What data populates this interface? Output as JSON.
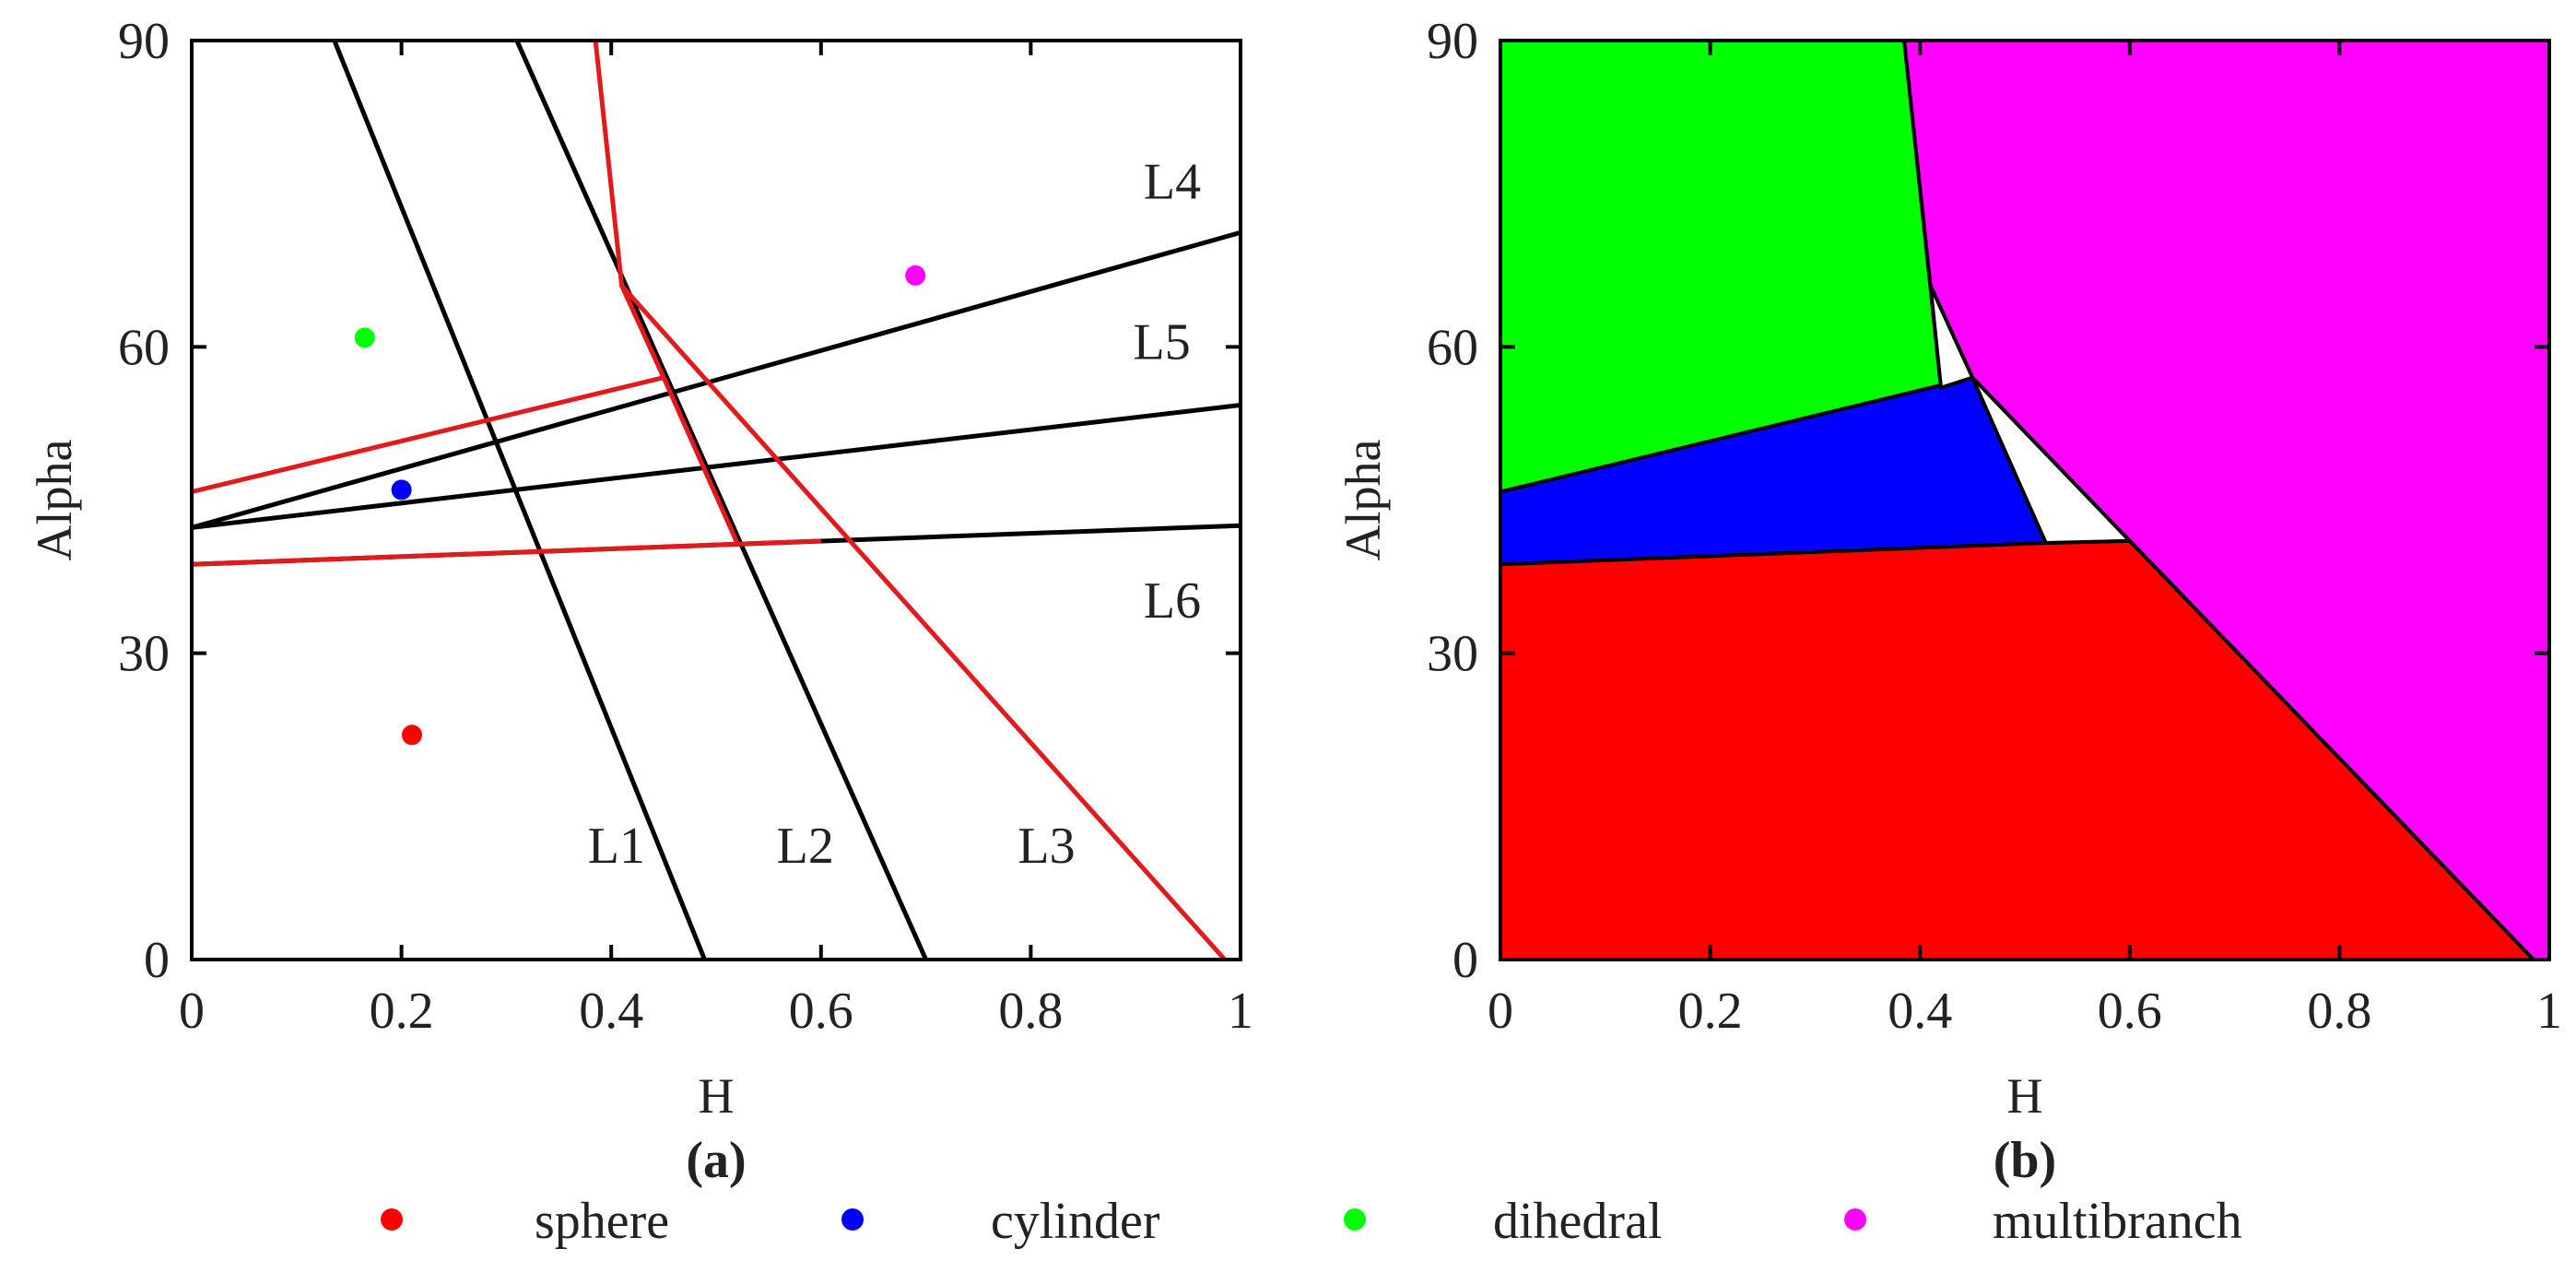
{
  "chart_data": [
    {
      "type": "line",
      "panel": "a",
      "caption": "(a)",
      "xlabel": "H",
      "ylabel": "Alpha",
      "xlim": [
        0,
        1
      ],
      "ylim": [
        0,
        90
      ],
      "xticks": [
        "0",
        "0.2",
        "0.4",
        "0.6",
        "0.8",
        "1"
      ],
      "yticks": [
        "0",
        "30",
        "60",
        "90"
      ],
      "black_lines": [
        {
          "name": "L1",
          "points": [
            [
              0.136,
              90
            ],
            [
              0.489,
              0
            ]
          ]
        },
        {
          "name": "L2",
          "points": [
            [
              0.31,
              90
            ],
            [
              0.7,
              0
            ]
          ]
        },
        {
          "name": "L4",
          "points": [
            [
              0.0,
              42.3
            ],
            [
              1.0,
              71.2
            ]
          ]
        },
        {
          "name": "L5",
          "points": [
            [
              0.0,
              42.3
            ],
            [
              1.0,
              54.3
            ]
          ]
        },
        {
          "name": "L6",
          "points": [
            [
              0.0,
              38.7
            ],
            [
              1.0,
              42.5
            ]
          ]
        }
      ],
      "red_lines": [
        {
          "name": "boundary-steep",
          "points": [
            [
              0.385,
              90
            ],
            [
              0.41,
              66.0
            ],
            [
              0.45,
              57.0
            ],
            [
              0.52,
              40.8
            ]
          ]
        },
        {
          "name": "L3",
          "points": [
            [
              0.41,
              66.0
            ],
            [
              0.985,
              0
            ]
          ]
        },
        {
          "name": "boundary-upper",
          "points": [
            [
              0.0,
              45.8
            ],
            [
              0.45,
              57.0
            ]
          ]
        },
        {
          "name": "boundary-lower",
          "points": [
            [
              0.0,
              38.7
            ],
            [
              0.6,
              41.0
            ]
          ]
        }
      ],
      "line_labels": [
        {
          "text": "L1",
          "x": 0.405,
          "y": 9.5
        },
        {
          "text": "L2",
          "x": 0.585,
          "y": 9.5
        },
        {
          "text": "L3",
          "x": 0.815,
          "y": 9.5
        },
        {
          "text": "L4",
          "x": 0.935,
          "y": 74.5
        },
        {
          "text": "L5",
          "x": 0.925,
          "y": 58.8
        },
        {
          "text": "L6",
          "x": 0.935,
          "y": 33.5
        }
      ],
      "points": [
        {
          "class": "sphere",
          "x": 0.21,
          "y": 22.0,
          "color": "#ff0000"
        },
        {
          "class": "cylinder",
          "x": 0.2,
          "y": 46.0,
          "color": "#0000ff"
        },
        {
          "class": "dihedral",
          "x": 0.165,
          "y": 60.9,
          "color": "#00ff00"
        },
        {
          "class": "multibranch",
          "x": 0.69,
          "y": 67.0,
          "color": "#ff00ff"
        }
      ]
    },
    {
      "type": "area",
      "panel": "b",
      "caption": "(b)",
      "xlabel": "H",
      "ylabel": "Alpha",
      "xlim": [
        0,
        1
      ],
      "ylim": [
        0,
        90
      ],
      "xticks": [
        "0",
        "0.2",
        "0.4",
        "0.6",
        "0.8",
        "1"
      ],
      "yticks": [
        "0",
        "30",
        "60",
        "90"
      ],
      "regions": [
        {
          "class": "dihedral",
          "color": "#00ff00",
          "polygon": [
            [
              0,
              90
            ],
            [
              0.385,
              90
            ],
            [
              0.42,
              56.0
            ],
            [
              0.0,
              45.8
            ]
          ]
        },
        {
          "class": "multibranch",
          "color": "#ff00ff",
          "polygon": [
            [
              0.385,
              90
            ],
            [
              1,
              90
            ],
            [
              1,
              0
            ],
            [
              0.985,
              0
            ],
            [
              0.6,
              41.0
            ],
            [
              0.45,
              57.0
            ],
            [
              0.41,
              66.0
            ]
          ]
        },
        {
          "class": "cylinder",
          "color": "#0000ff",
          "polygon": [
            [
              0.0,
              45.8
            ],
            [
              0.45,
              57.0
            ],
            [
              0.52,
              40.8
            ],
            [
              0.0,
              38.7
            ]
          ]
        },
        {
          "class": "sphere",
          "color": "#ff0000",
          "polygon": [
            [
              0.0,
              38.7
            ],
            [
              0.52,
              40.8
            ],
            [
              0.6,
              41.0
            ],
            [
              0.985,
              0
            ],
            [
              0,
              0
            ]
          ]
        },
        {
          "class": "unassigned",
          "color": "#ffffff",
          "polygon": [
            [
              0.41,
              66.0
            ],
            [
              0.45,
              57.0
            ],
            [
              0.42,
              56.0
            ]
          ]
        },
        {
          "class": "unassigned",
          "color": "#ffffff",
          "polygon": [
            [
              0.45,
              57.0
            ],
            [
              0.6,
              41.0
            ],
            [
              0.52,
              40.8
            ]
          ]
        }
      ]
    }
  ],
  "legend": [
    {
      "label": "sphere",
      "color": "#ff0000"
    },
    {
      "label": "cylinder",
      "color": "#0000ff"
    },
    {
      "label": "dihedral",
      "color": "#00ff00"
    },
    {
      "label": "multibranch",
      "color": "#ff00ff"
    }
  ]
}
